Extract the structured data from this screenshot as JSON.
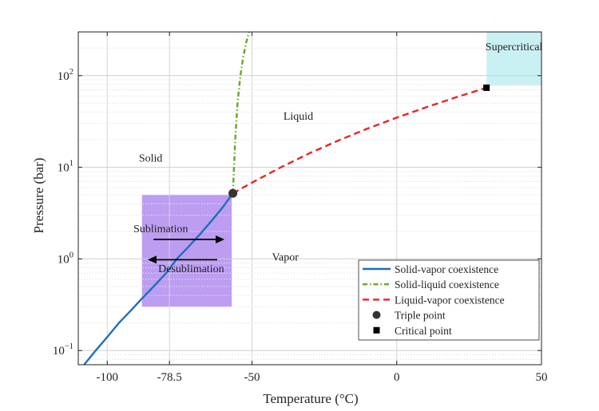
{
  "chart_data": {
    "type": "line",
    "xlabel": "Temperature (°C)",
    "ylabel": "Pressure (bar)",
    "xlim": [
      -110,
      50
    ],
    "ylim": [
      0.07,
      300
    ],
    "yscale": "log",
    "grid": true,
    "minor_grid": true,
    "x_ticks": [
      {
        "value": -100,
        "label": "-100"
      },
      {
        "value": -78.5,
        "label": "-78.5"
      },
      {
        "value": -50,
        "label": "-50"
      },
      {
        "value": 0,
        "label": "0"
      },
      {
        "value": 50,
        "label": "50"
      }
    ],
    "y_ticks": [
      {
        "value": 0.1,
        "base": "10",
        "exp": "−1"
      },
      {
        "value": 1,
        "base": "10",
        "exp": "0"
      },
      {
        "value": 10,
        "base": "10",
        "exp": "1"
      },
      {
        "value": 100,
        "base": "10",
        "exp": "2"
      }
    ],
    "legend_position": "bottom-right",
    "series": [
      {
        "name": "Solid-vapor coexistence",
        "style": "solid",
        "color": "#1f6fbd",
        "x": [
          -108,
          -104,
          -100,
          -96,
          -92,
          -88,
          -84,
          -80,
          -78.5,
          -76,
          -72,
          -68,
          -64,
          -60,
          -56.6
        ],
        "y": [
          0.07,
          0.1,
          0.14,
          0.2,
          0.27,
          0.37,
          0.5,
          0.68,
          0.78,
          1.0,
          1.35,
          1.85,
          2.6,
          3.7,
          5.2
        ]
      },
      {
        "name": "Solid-liquid coexistence",
        "style": "dash-dot",
        "color": "#6aa526",
        "x": [
          -56.6,
          -56.2,
          -55.8,
          -55.0,
          -54.0,
          -53.0,
          -52.0,
          -51.0
        ],
        "y": [
          5.2,
          10,
          20,
          50,
          100,
          160,
          230,
          300
        ]
      },
      {
        "name": "Liquid-vapor coexistence",
        "style": "dashed",
        "color": "#ee2222",
        "x": [
          -56.6,
          -50,
          -40,
          -30,
          -20,
          -10,
          0,
          10,
          20,
          31
        ],
        "y": [
          5.2,
          6.8,
          10,
          14.3,
          19.7,
          26.5,
          34.8,
          45,
          57.3,
          73.8
        ]
      },
      {
        "name": "Triple point",
        "style": "marker-circle",
        "color": "#333333",
        "x": [
          -56.6
        ],
        "y": [
          5.2
        ]
      },
      {
        "name": "Critical point",
        "style": "marker-square",
        "color": "#000000",
        "x": [
          31
        ],
        "y": [
          73.8
        ]
      }
    ],
    "regions": [
      {
        "name": "sublimation-region",
        "color": "#b08cf0",
        "x": [
          -88,
          -57
        ],
        "y": [
          0.3,
          5.0
        ]
      },
      {
        "name": "supercritical-region",
        "color": "#bfeef2",
        "x": [
          31,
          50
        ],
        "y": [
          78,
          300
        ]
      }
    ],
    "annotations": [
      {
        "name": "label-solid",
        "text": "Solid",
        "x": -85,
        "y": 11.5
      },
      {
        "name": "label-liquid",
        "text": "Liquid",
        "x": -34,
        "y": 33
      },
      {
        "name": "label-vapor",
        "text": "Vapor",
        "x": -38.5,
        "y": 0.96
      },
      {
        "name": "label-supercritical",
        "text": "Supercritical",
        "x": 40.5,
        "y": 190
      },
      {
        "name": "label-sublimation",
        "text": "Sublimation",
        "x": -81.5,
        "y": 1.95
      },
      {
        "name": "label-desublimation",
        "text": "Desublimation",
        "x": -71,
        "y": 0.72
      }
    ],
    "arrows": [
      {
        "name": "sublimation-arrow",
        "from": [
          -84,
          1.63
        ],
        "to": [
          -59.5,
          1.63
        ]
      },
      {
        "name": "desublimation-arrow",
        "from": [
          -62,
          0.98
        ],
        "to": [
          -86,
          0.98
        ]
      }
    ]
  }
}
